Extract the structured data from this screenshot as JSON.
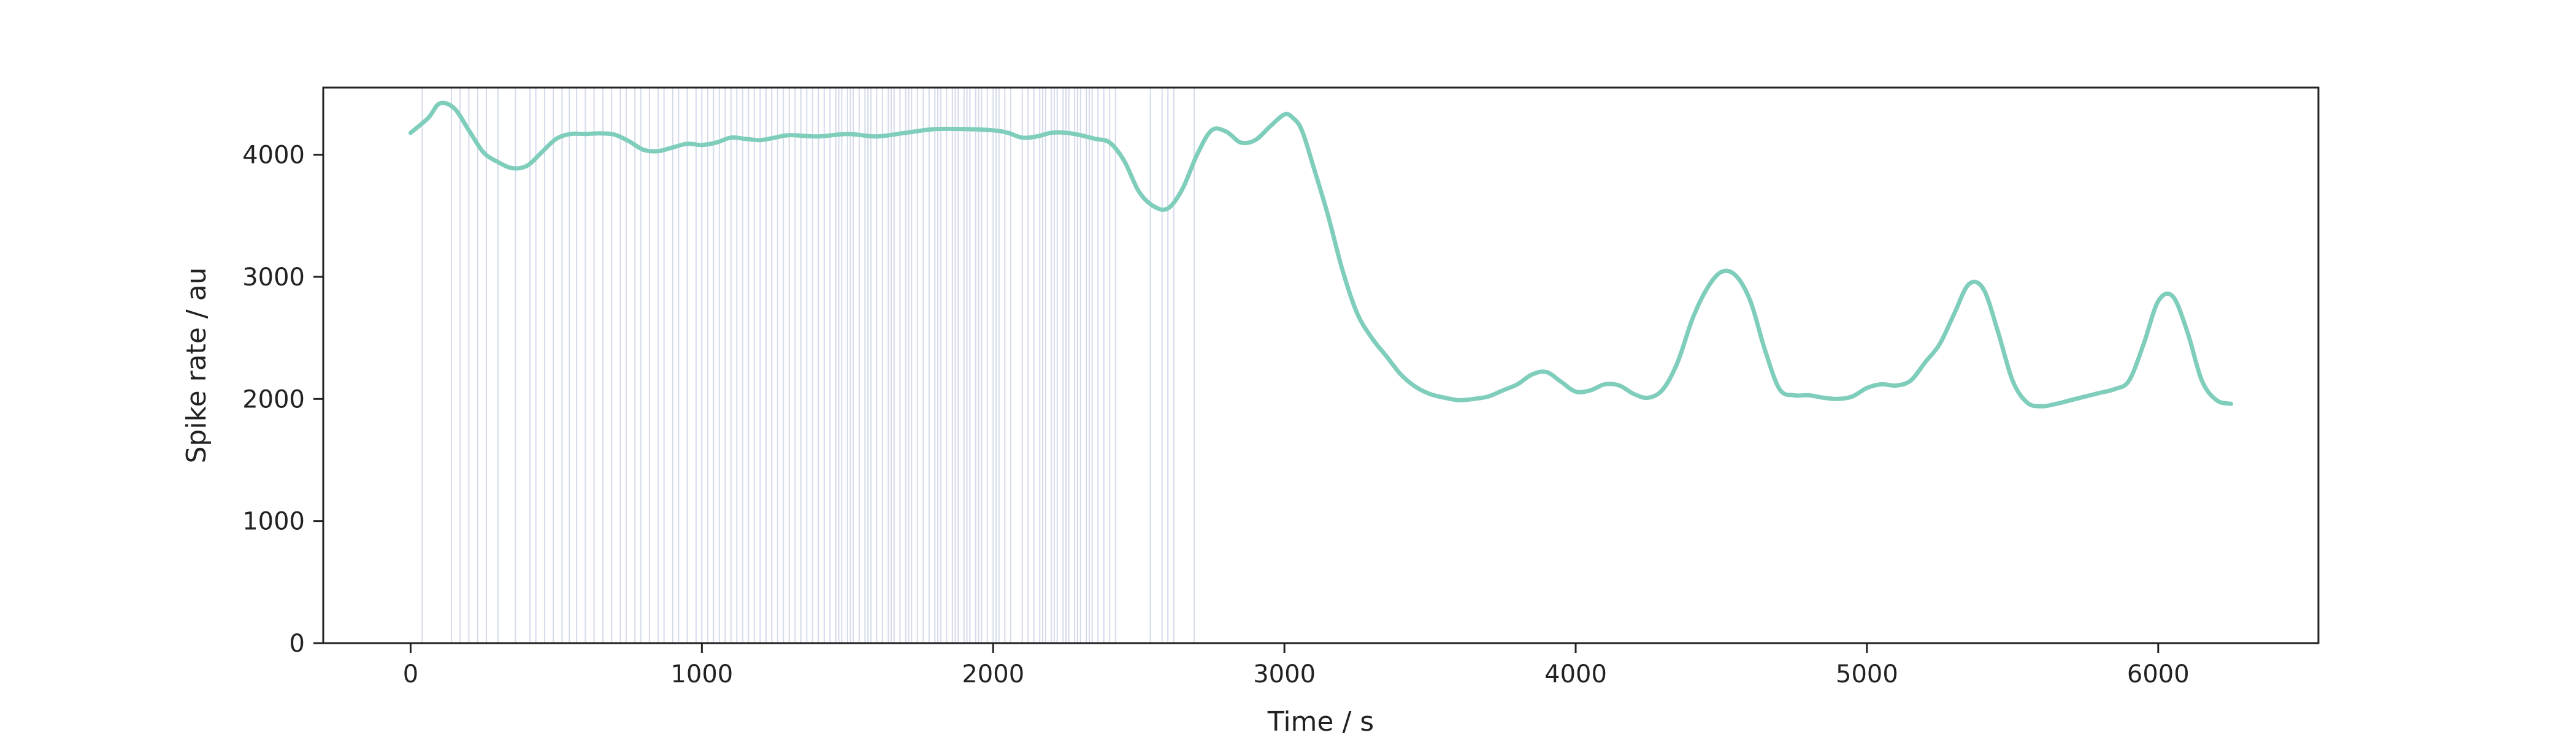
{
  "chart_data": {
    "type": "line",
    "title": "",
    "xlabel": "Time / s",
    "ylabel": "Spike rate / au",
    "xlim": [
      -300,
      6550
    ],
    "ylim": [
      0,
      4550
    ],
    "xticks": [
      0,
      1000,
      2000,
      3000,
      4000,
      5000,
      6000
    ],
    "yticks": [
      0,
      1000,
      2000,
      3000,
      4000
    ],
    "grid": false,
    "legend": "none",
    "colors": {
      "line": "#7fcdbb",
      "event_lines": "#c3cbe2",
      "axes": "#222222"
    },
    "series": [
      {
        "x": [
          0,
          60,
          100,
          150,
          200,
          250,
          300,
          350,
          400,
          450,
          500,
          550,
          600,
          650,
          700,
          750,
          800,
          850,
          900,
          950,
          1000,
          1050,
          1100,
          1150,
          1200,
          1250,
          1300,
          1400,
          1500,
          1600,
          1700,
          1800,
          1900,
          2000,
          2050,
          2100,
          2150,
          2200,
          2250,
          2300,
          2350,
          2400,
          2450,
          2500,
          2550,
          2600,
          2650,
          2700,
          2750,
          2800,
          2850,
          2900,
          2950,
          3000,
          3030,
          3060,
          3100,
          3150,
          3200,
          3250,
          3300,
          3350,
          3400,
          3450,
          3500,
          3550,
          3600,
          3650,
          3700,
          3750,
          3800,
          3850,
          3900,
          3950,
          4000,
          4050,
          4100,
          4150,
          4200,
          4250,
          4300,
          4350,
          4400,
          4450,
          4500,
          4550,
          4600,
          4650,
          4700,
          4750,
          4800,
          4850,
          4900,
          4950,
          5000,
          5050,
          5100,
          5150,
          5200,
          5250,
          5300,
          5350,
          5400,
          5450,
          5500,
          5550,
          5600,
          5650,
          5700,
          5750,
          5800,
          5850,
          5900,
          5950,
          6000,
          6050,
          6100,
          6150,
          6200,
          6250
        ],
        "y": [
          4180,
          4300,
          4420,
          4380,
          4200,
          4020,
          3940,
          3890,
          3910,
          4020,
          4130,
          4170,
          4170,
          4175,
          4165,
          4110,
          4040,
          4030,
          4060,
          4090,
          4080,
          4100,
          4140,
          4130,
          4120,
          4140,
          4160,
          4150,
          4170,
          4150,
          4180,
          4210,
          4210,
          4200,
          4180,
          4140,
          4150,
          4180,
          4180,
          4160,
          4130,
          4100,
          3950,
          3700,
          3580,
          3560,
          3720,
          4000,
          4200,
          4190,
          4100,
          4120,
          4230,
          4330,
          4300,
          4200,
          3900,
          3500,
          3050,
          2700,
          2500,
          2350,
          2200,
          2100,
          2040,
          2010,
          1990,
          2000,
          2020,
          2070,
          2120,
          2200,
          2220,
          2140,
          2060,
          2070,
          2120,
          2110,
          2040,
          2010,
          2080,
          2300,
          2650,
          2900,
          3040,
          3010,
          2800,
          2400,
          2080,
          2030,
          2030,
          2010,
          2000,
          2020,
          2090,
          2120,
          2110,
          2150,
          2300,
          2450,
          2700,
          2940,
          2900,
          2550,
          2150,
          1970,
          1940,
          1960,
          1990,
          2020,
          2050,
          2080,
          2150,
          2450,
          2800,
          2840,
          2550,
          2150,
          1990,
          1960
        ]
      }
    ],
    "event_times": [
      40,
      140,
      170,
      200,
      230,
      260,
      300,
      360,
      410,
      430,
      460,
      490,
      520,
      545,
      570,
      600,
      630,
      660,
      690,
      720,
      740,
      770,
      790,
      820,
      850,
      870,
      900,
      920,
      950,
      980,
      1000,
      1020,
      1040,
      1060,
      1080,
      1100,
      1120,
      1140,
      1160,
      1180,
      1200,
      1220,
      1240,
      1260,
      1280,
      1300,
      1320,
      1340,
      1360,
      1380,
      1400,
      1420,
      1440,
      1460,
      1470,
      1480,
      1500,
      1510,
      1520,
      1540,
      1560,
      1570,
      1580,
      1600,
      1620,
      1640,
      1650,
      1660,
      1680,
      1700,
      1710,
      1720,
      1740,
      1760,
      1780,
      1800,
      1810,
      1820,
      1840,
      1860,
      1870,
      1880,
      1900,
      1910,
      1920,
      1940,
      1950,
      1960,
      1980,
      2000,
      2010,
      2020,
      2040,
      2060,
      2100,
      2120,
      2140,
      2160,
      2170,
      2180,
      2200,
      2210,
      2220,
      2240,
      2250,
      2260,
      2280,
      2290,
      2300,
      2320,
      2330,
      2340,
      2360,
      2380,
      2400,
      2420,
      2540,
      2580,
      2600,
      2620,
      2690
    ]
  }
}
